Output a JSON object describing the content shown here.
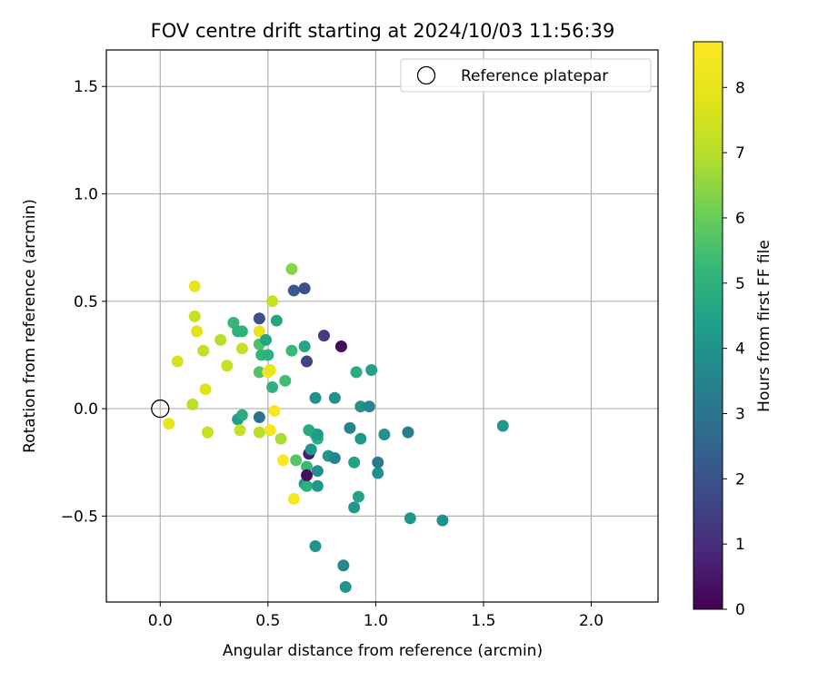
{
  "chart_data": {
    "type": "scatter",
    "title": "FOV centre drift starting at 2024/10/03 11:56:39",
    "xlabel": "Angular distance from reference (arcmin)",
    "ylabel": "Rotation from reference (arcmin)",
    "xlim": [
      -0.25,
      2.31
    ],
    "ylim": [
      -0.9,
      1.67
    ],
    "xticks": [
      0.0,
      0.5,
      1.0,
      1.5,
      2.0
    ],
    "xtick_labels": [
      "0.0",
      "0.5",
      "1.0",
      "1.5",
      "2.0"
    ],
    "yticks": [
      -0.5,
      0.0,
      0.5,
      1.0,
      1.5
    ],
    "ytick_labels": [
      "−0.5",
      "0.0",
      "0.5",
      "1.0",
      "1.5"
    ],
    "grid": true,
    "legend": {
      "position": "top-right",
      "label": "Reference platepar"
    },
    "reference_point": {
      "x": 0.0,
      "y": 0.0
    },
    "colorbar": {
      "label": "Hours from first FF file",
      "min": 0,
      "max": 8.7,
      "ticks": [
        0,
        1,
        2,
        3,
        4,
        5,
        6,
        7,
        8
      ],
      "tick_labels": [
        "0",
        "1",
        "2",
        "3",
        "4",
        "5",
        "6",
        "7",
        "8"
      ],
      "colormap": "viridis"
    },
    "points": [
      [
        0.08,
        0.22,
        7.6
      ],
      [
        0.04,
        -0.07,
        8.0
      ],
      [
        0.16,
        0.57,
        8.0
      ],
      [
        0.16,
        0.43,
        7.3
      ],
      [
        0.17,
        0.36,
        7.8
      ],
      [
        0.15,
        0.02,
        7.1
      ],
      [
        0.2,
        0.27,
        7.2
      ],
      [
        0.21,
        0.09,
        7.8
      ],
      [
        0.22,
        -0.11,
        7.3
      ],
      [
        0.28,
        0.32,
        7.0
      ],
      [
        0.31,
        0.2,
        7.3
      ],
      [
        0.34,
        0.4,
        5.2
      ],
      [
        0.36,
        0.36,
        5.0
      ],
      [
        0.38,
        0.36,
        5.0
      ],
      [
        0.38,
        0.28,
        7.3
      ],
      [
        0.36,
        -0.05,
        4.4
      ],
      [
        0.38,
        -0.03,
        4.8
      ],
      [
        0.37,
        -0.1,
        7.2
      ],
      [
        0.46,
        0.42,
        2.0
      ],
      [
        0.46,
        0.36,
        8.0
      ],
      [
        0.46,
        0.3,
        5.6
      ],
      [
        0.47,
        0.25,
        5.2
      ],
      [
        0.49,
        0.32,
        4.6
      ],
      [
        0.46,
        0.17,
        5.6
      ],
      [
        0.5,
        0.25,
        5.0
      ],
      [
        0.46,
        -0.04,
        3.0
      ],
      [
        0.46,
        -0.11,
        7.0
      ],
      [
        0.5,
        0.17,
        8.4
      ],
      [
        0.51,
        0.18,
        8.0
      ],
      [
        0.52,
        0.1,
        5.0
      ],
      [
        0.52,
        0.5,
        7.3
      ],
      [
        0.54,
        0.41,
        4.6
      ],
      [
        0.51,
        -0.1,
        8.4
      ],
      [
        0.53,
        -0.01,
        8.5
      ],
      [
        0.56,
        -0.14,
        6.8
      ],
      [
        0.57,
        -0.24,
        8.6
      ],
      [
        0.58,
        0.13,
        5.4
      ],
      [
        0.61,
        0.65,
        6.4
      ],
      [
        0.61,
        0.27,
        5.3
      ],
      [
        0.62,
        0.55,
        2.2
      ],
      [
        0.62,
        -0.42,
        8.5
      ],
      [
        0.63,
        -0.24,
        5.7
      ],
      [
        0.67,
        0.56,
        1.9
      ],
      [
        0.67,
        0.29,
        4.6
      ],
      [
        0.68,
        0.22,
        1.6
      ],
      [
        0.67,
        -0.35,
        4.1
      ],
      [
        0.68,
        -0.36,
        5.0
      ],
      [
        0.68,
        -0.27,
        5.3
      ],
      [
        0.68,
        -0.31,
        0.3
      ],
      [
        0.69,
        -0.21,
        0.6
      ],
      [
        0.7,
        -0.19,
        4.1
      ],
      [
        0.69,
        -0.1,
        4.8
      ],
      [
        0.72,
        -0.12,
        4.8
      ],
      [
        0.73,
        -0.14,
        4.8
      ],
      [
        0.73,
        -0.12,
        4.3
      ],
      [
        0.72,
        0.05,
        3.9
      ],
      [
        0.73,
        -0.29,
        3.9
      ],
      [
        0.73,
        -0.36,
        4.1
      ],
      [
        0.72,
        -0.64,
        4.0
      ],
      [
        0.76,
        0.34,
        1.4
      ],
      [
        0.78,
        -0.22,
        4.2
      ],
      [
        0.81,
        -0.23,
        3.6
      ],
      [
        0.81,
        0.05,
        3.9
      ],
      [
        0.84,
        0.29,
        0.2
      ],
      [
        0.85,
        -0.73,
        3.7
      ],
      [
        0.86,
        -0.83,
        4.1
      ],
      [
        0.88,
        -0.09,
        3.6
      ],
      [
        0.9,
        -0.25,
        4.5
      ],
      [
        0.9,
        -0.46,
        4.2
      ],
      [
        0.91,
        0.17,
        4.8
      ],
      [
        0.92,
        -0.41,
        4.5
      ],
      [
        0.93,
        0.01,
        3.9
      ],
      [
        0.93,
        -0.14,
        4.2
      ],
      [
        0.97,
        0.01,
        3.6
      ],
      [
        0.98,
        0.18,
        4.5
      ],
      [
        1.01,
        -0.3,
        3.9
      ],
      [
        1.01,
        -0.25,
        3.2
      ],
      [
        1.04,
        -0.12,
        3.9
      ],
      [
        1.15,
        -0.11,
        3.3
      ],
      [
        1.16,
        -0.51,
        4.2
      ],
      [
        1.31,
        -0.52,
        3.9
      ],
      [
        1.59,
        -0.08,
        4.2
      ]
    ]
  }
}
